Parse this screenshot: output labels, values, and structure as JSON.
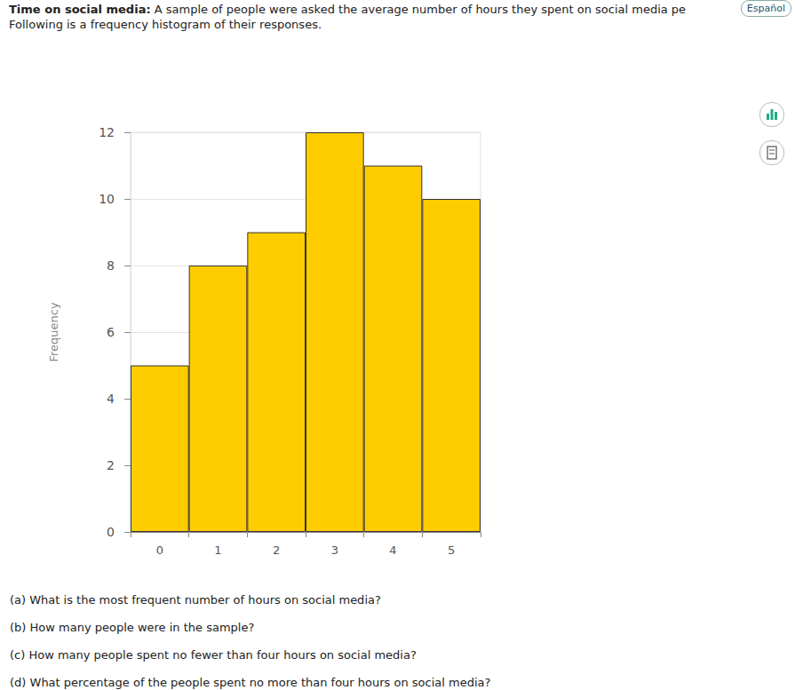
{
  "page": {
    "heading_bold": "Time on social media:",
    "heading_rest": " A sample of people were asked the average number of hours they spent on social media pe",
    "line2": "Following is a frequency histogram of their responses.",
    "button": "Español",
    "questions": [
      "(a) What is the most frequent number of hours on social media?",
      "(b) How many people were in the sample?",
      "(c) How many people spent no fewer than four hours on social media?",
      "(d) What percentage of the people spent no more than four hours on social media?"
    ]
  },
  "chart_data": {
    "type": "bar",
    "y_label": "Frequency",
    "categories": [
      0,
      1,
      2,
      3,
      4,
      5
    ],
    "values": [
      5,
      8,
      9,
      12,
      11,
      10
    ],
    "color": "#ffcc00",
    "ylim": [
      0,
      12
    ],
    "yticks": [
      0,
      2,
      4,
      6,
      8,
      10,
      12
    ],
    "grid": true
  }
}
